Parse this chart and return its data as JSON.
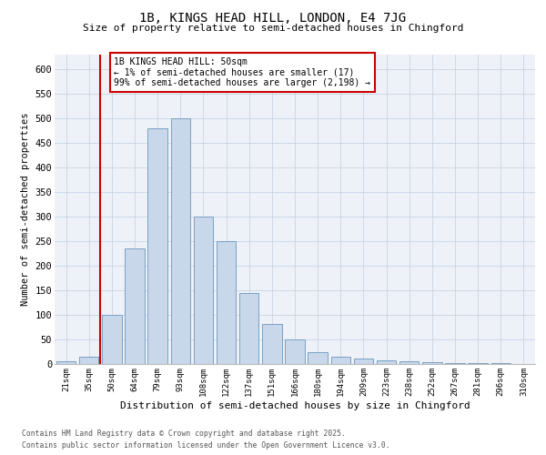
{
  "title": "1B, KINGS HEAD HILL, LONDON, E4 7JG",
  "subtitle": "Size of property relative to semi-detached houses in Chingford",
  "xlabel": "Distribution of semi-detached houses by size in Chingford",
  "ylabel": "Number of semi-detached properties",
  "categories": [
    "21sqm",
    "35sqm",
    "50sqm",
    "64sqm",
    "79sqm",
    "93sqm",
    "108sqm",
    "122sqm",
    "137sqm",
    "151sqm",
    "166sqm",
    "180sqm",
    "194sqm",
    "209sqm",
    "223sqm",
    "238sqm",
    "252sqm",
    "267sqm",
    "281sqm",
    "296sqm",
    "310sqm"
  ],
  "values": [
    5,
    15,
    100,
    235,
    480,
    500,
    300,
    250,
    145,
    82,
    50,
    25,
    15,
    12,
    8,
    5,
    3,
    2,
    1,
    1,
    0
  ],
  "bar_color": "#c8d8ea",
  "bar_edge_color": "#7aa0c4",
  "vline_color": "#cc0000",
  "annotation_text": "1B KINGS HEAD HILL: 50sqm\n← 1% of semi-detached houses are smaller (17)\n99% of semi-detached houses are larger (2,198) →",
  "annotation_box_color": "#ffffff",
  "annotation_box_edge": "#cc0000",
  "ylim": [
    0,
    630
  ],
  "yticks": [
    0,
    50,
    100,
    150,
    200,
    250,
    300,
    350,
    400,
    450,
    500,
    550,
    600
  ],
  "grid_color": "#c8d4e4",
  "background_color": "#eef2f8",
  "footer_line1": "Contains HM Land Registry data © Crown copyright and database right 2025.",
  "footer_line2": "Contains public sector information licensed under the Open Government Licence v3.0."
}
